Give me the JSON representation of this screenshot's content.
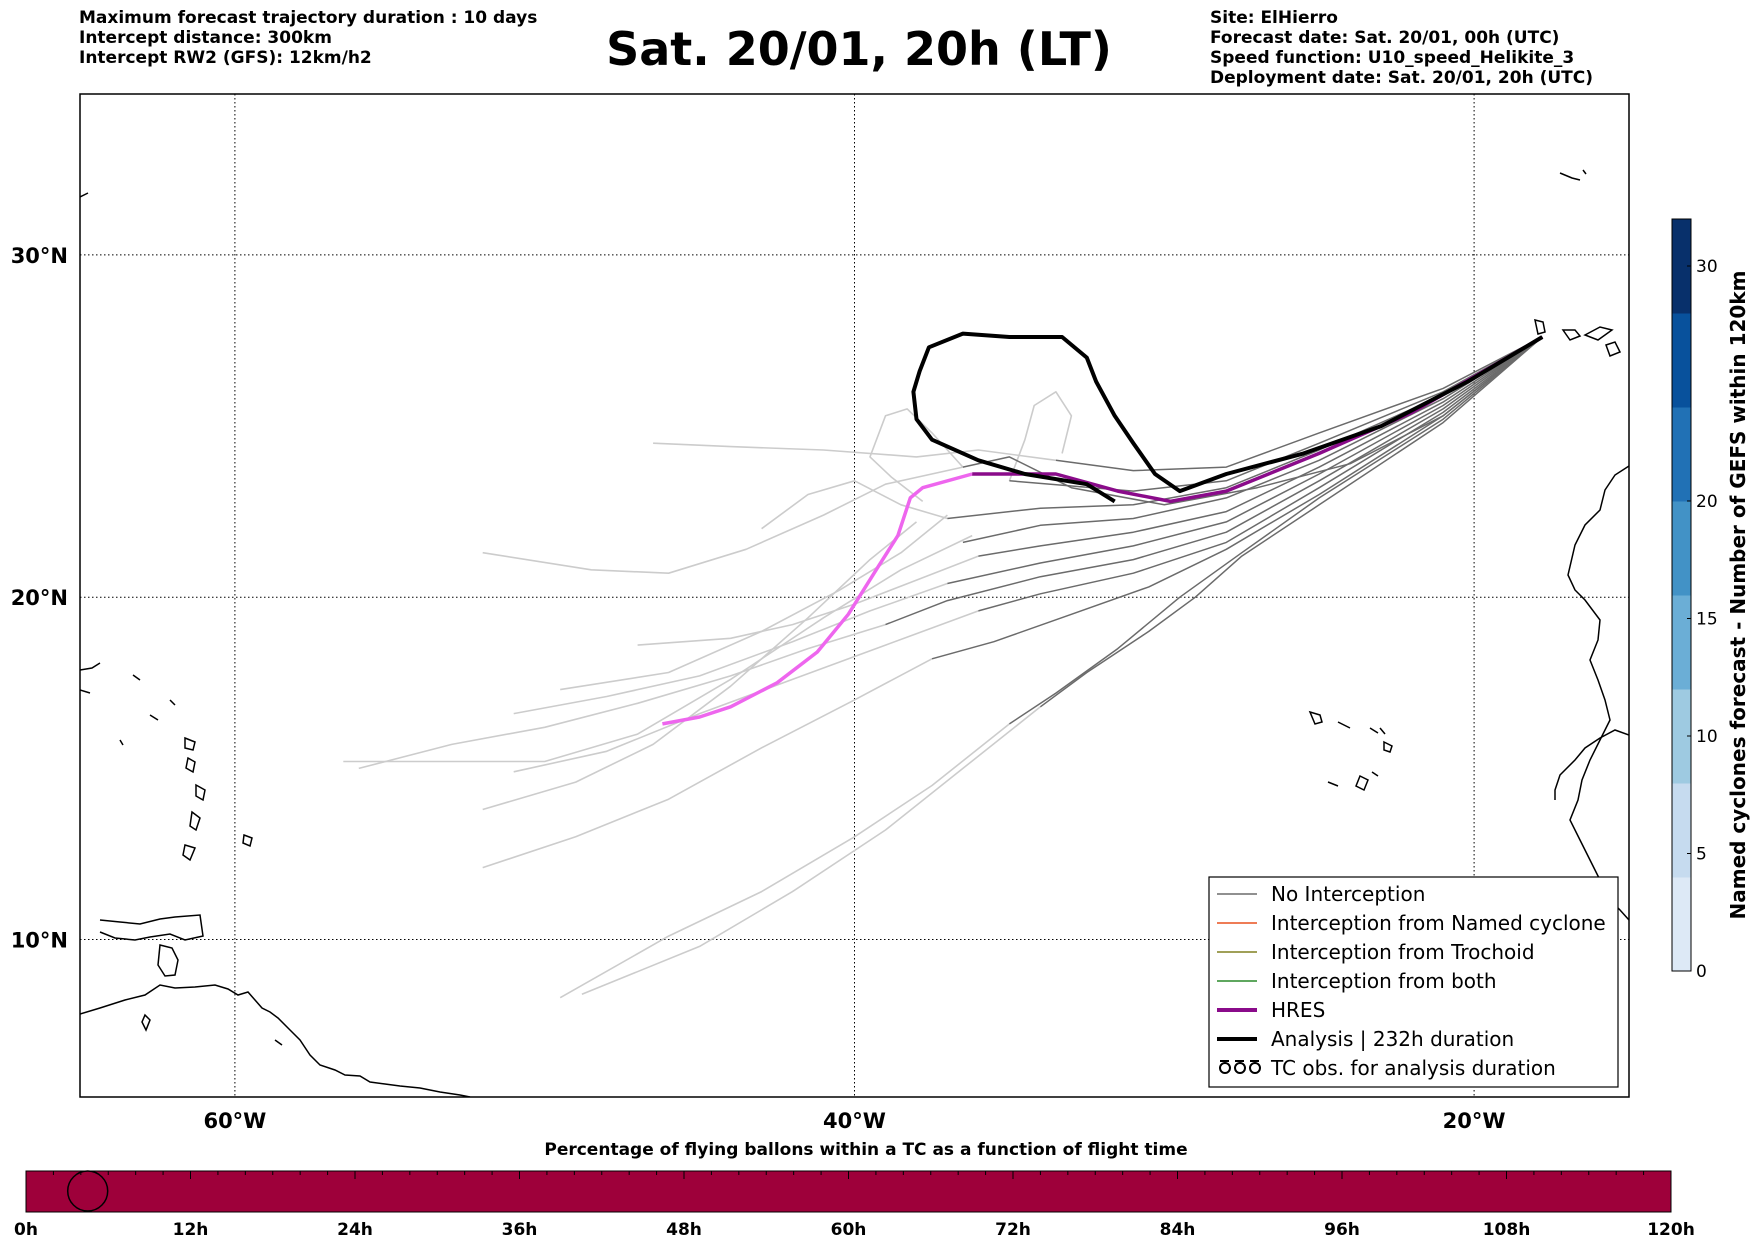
{
  "header": {
    "left_lines": [
      "Maximum forecast trajectory duration : 10 days",
      "Intercept distance: 300km",
      "Intercept RW2 (GFS):  12km/h2"
    ],
    "title": "Sat. 20/01, 20h (LT)",
    "right_lines": [
      "Site: ElHierro",
      "Forecast date: Sat. 20/01, 00h (UTC)",
      "Speed function: U10_speed_Helikite_3",
      "Deployment date: Sat. 20/01, 20h (UTC)"
    ]
  },
  "map": {
    "lon_range": [
      -65,
      -15
    ],
    "lat_range": [
      5.4,
      34.7
    ],
    "lat_labels": [
      {
        "lat": 30,
        "label": "30°N"
      },
      {
        "lat": 20,
        "label": "20°N"
      },
      {
        "lat": 10,
        "label": "10°N"
      }
    ],
    "lon_labels": [
      {
        "lon": -60,
        "label": "60°W"
      },
      {
        "lon": -40,
        "label": "40°W"
      },
      {
        "lon": -20,
        "label": "20°W"
      }
    ],
    "colors": {
      "ensemble_intercepted": "#6b6b6b",
      "ensemble_not_intercepted": "#cccccc",
      "hres": "#8a0b8a",
      "hres_extension": "#ee66ee",
      "analysis": "#000000"
    },
    "hres_track": [
      [
        -17.8,
        27.6
      ],
      [
        -19.5,
        26.7
      ],
      [
        -22,
        25.4
      ],
      [
        -25,
        24.2
      ],
      [
        -28,
        23.1
      ],
      [
        -29.8,
        22.8
      ],
      [
        -31.5,
        23.1
      ],
      [
        -33.5,
        23.6
      ],
      [
        -34.8,
        23.6
      ],
      [
        -36.2,
        23.6
      ]
    ],
    "hres_extension_track": [
      [
        -36.2,
        23.6
      ],
      [
        -37.8,
        23.2
      ],
      [
        -38.2,
        22.9
      ],
      [
        -38.6,
        21.8
      ],
      [
        -39.3,
        20.8
      ],
      [
        -40.2,
        19.5
      ],
      [
        -41.2,
        18.4
      ],
      [
        -42.5,
        17.5
      ],
      [
        -44,
        16.8
      ],
      [
        -45,
        16.5
      ],
      [
        -46.2,
        16.3
      ]
    ],
    "analysis_track": [
      [
        -17.8,
        27.6
      ],
      [
        -20.2,
        26.3
      ],
      [
        -23,
        25
      ],
      [
        -25.5,
        24.2
      ],
      [
        -28,
        23.6
      ],
      [
        -29.5,
        23.1
      ],
      [
        -30.3,
        23.6
      ],
      [
        -31,
        24.5
      ],
      [
        -31.6,
        25.3
      ],
      [
        -32.2,
        26.3
      ],
      [
        -32.5,
        27
      ],
      [
        -33.3,
        27.6
      ],
      [
        -35,
        27.6
      ],
      [
        -36.5,
        27.7
      ],
      [
        -37.6,
        27.3
      ],
      [
        -37.9,
        26.6
      ],
      [
        -38.1,
        26
      ],
      [
        -38,
        25.2
      ],
      [
        -37.5,
        24.6
      ],
      [
        -36,
        24
      ],
      [
        -34.5,
        23.6
      ],
      [
        -32.5,
        23.3
      ],
      [
        -31.6,
        22.8
      ]
    ],
    "ensemble_intercepted": [
      [
        [
          -17.8,
          27.6
        ],
        [
          -21,
          26.1
        ],
        [
          -25,
          24.8
        ],
        [
          -28,
          23.8
        ],
        [
          -31,
          23.7
        ],
        [
          -33.5,
          24
        ]
      ],
      [
        [
          -17.8,
          27.6
        ],
        [
          -21,
          26
        ],
        [
          -25,
          24.5
        ],
        [
          -28,
          23.4
        ],
        [
          -31,
          23.1
        ],
        [
          -35,
          23.4
        ]
      ],
      [
        [
          -17.8,
          27.6
        ],
        [
          -21,
          25.9
        ],
        [
          -25,
          24.3
        ],
        [
          -28,
          23.2
        ],
        [
          -31,
          22.7
        ],
        [
          -34,
          22.6
        ],
        [
          -37,
          22.3
        ]
      ],
      [
        [
          -17.8,
          27.6
        ],
        [
          -21,
          25.8
        ],
        [
          -25,
          24
        ],
        [
          -28,
          22.9
        ],
        [
          -31,
          22.3
        ],
        [
          -34,
          22.1
        ],
        [
          -36.5,
          21.6
        ]
      ],
      [
        [
          -17.8,
          27.6
        ],
        [
          -21,
          25.7
        ],
        [
          -25,
          23.8
        ],
        [
          -28,
          22.5
        ],
        [
          -31,
          21.9
        ],
        [
          -34,
          21.5
        ],
        [
          -36,
          21.2
        ]
      ],
      [
        [
          -17.8,
          27.6
        ],
        [
          -21,
          25.6
        ],
        [
          -25,
          23.6
        ],
        [
          -28,
          22.2
        ],
        [
          -31,
          21.5
        ],
        [
          -34,
          21
        ],
        [
          -37,
          20.4
        ]
      ],
      [
        [
          -17.8,
          27.6
        ],
        [
          -21,
          25.5
        ],
        [
          -25,
          23.4
        ],
        [
          -28,
          21.9
        ],
        [
          -31,
          21.1
        ],
        [
          -34,
          20.6
        ],
        [
          -37,
          19.9
        ],
        [
          -39,
          19.2
        ]
      ],
      [
        [
          -17.8,
          27.6
        ],
        [
          -21,
          25.4
        ],
        [
          -25,
          23.2
        ],
        [
          -28,
          21.6
        ],
        [
          -31,
          20.7
        ],
        [
          -34,
          20.1
        ],
        [
          -36,
          19.6
        ]
      ],
      [
        [
          -17.8,
          27.6
        ],
        [
          -21,
          25.3
        ],
        [
          -25,
          23
        ],
        [
          -28,
          21.4
        ],
        [
          -30.5,
          20.3
        ],
        [
          -33,
          19.5
        ],
        [
          -35.5,
          18.7
        ],
        [
          -37.5,
          18.2
        ]
      ],
      [
        [
          -17.8,
          27.6
        ],
        [
          -21,
          25.2
        ],
        [
          -25,
          22.9
        ],
        [
          -27.5,
          21.3
        ],
        [
          -29.5,
          20
        ],
        [
          -31.5,
          18.5
        ],
        [
          -33.5,
          17.2
        ],
        [
          -35,
          16.3
        ]
      ],
      [
        [
          -17.8,
          27.6
        ],
        [
          -21,
          25.1
        ],
        [
          -25,
          22.7
        ],
        [
          -27.5,
          21.2
        ],
        [
          -29,
          20
        ],
        [
          -30.5,
          19
        ],
        [
          -32.5,
          17.8
        ],
        [
          -34,
          16.8
        ]
      ],
      [
        [
          -17.8,
          27.6
        ],
        [
          -21,
          25.3
        ],
        [
          -24,
          23.9
        ],
        [
          -27,
          23.2
        ],
        [
          -30,
          22.7
        ],
        [
          -33,
          23.2
        ],
        [
          -35,
          24.1
        ],
        [
          -36.5,
          23.8
        ]
      ]
    ],
    "ensemble_not_intercepted": [
      [
        [
          -33.5,
          24
        ],
        [
          -36,
          24.3
        ],
        [
          -38,
          24.1
        ],
        [
          -41,
          24.3
        ],
        [
          -44,
          24.4
        ],
        [
          -46.5,
          24.5
        ]
      ],
      [
        [
          -36.5,
          23.8
        ],
        [
          -39,
          23.3
        ],
        [
          -41,
          22.4
        ],
        [
          -43.5,
          21.4
        ],
        [
          -46,
          20.7
        ],
        [
          -48.5,
          20.8
        ],
        [
          -52,
          21.3
        ]
      ],
      [
        [
          -36,
          21.2
        ],
        [
          -38,
          20.5
        ],
        [
          -40,
          19.8
        ],
        [
          -42,
          19.2
        ],
        [
          -44,
          18.8
        ],
        [
          -47,
          18.6
        ]
      ],
      [
        [
          -37,
          20.4
        ],
        [
          -39.5,
          19.6
        ],
        [
          -42,
          18.7
        ],
        [
          -45,
          17.7
        ],
        [
          -48,
          17.1
        ],
        [
          -51,
          16.6
        ]
      ],
      [
        [
          -39,
          19.2
        ],
        [
          -41.5,
          18.5
        ],
        [
          -44,
          17.7
        ],
        [
          -47,
          16.9
        ],
        [
          -50,
          16.2
        ],
        [
          -53,
          15.7
        ],
        [
          -56,
          15
        ]
      ],
      [
        [
          -36,
          19.6
        ],
        [
          -39,
          18.6
        ],
        [
          -42,
          17.6
        ],
        [
          -45,
          16.6
        ],
        [
          -48,
          15.5
        ],
        [
          -51,
          14.9
        ]
      ],
      [
        [
          -37.5,
          18.2
        ],
        [
          -40,
          17
        ],
        [
          -43,
          15.6
        ],
        [
          -46,
          14.1
        ],
        [
          -49,
          13
        ],
        [
          -52,
          12.1
        ]
      ],
      [
        [
          -35,
          16.3
        ],
        [
          -37.5,
          14.5
        ],
        [
          -40,
          13
        ],
        [
          -43,
          11.4
        ],
        [
          -46,
          10.1
        ],
        [
          -49.5,
          8.3
        ]
      ],
      [
        [
          -34,
          16.8
        ],
        [
          -36.5,
          15
        ],
        [
          -39,
          13.2
        ],
        [
          -42,
          11.4
        ],
        [
          -45,
          9.8
        ],
        [
          -48.8,
          8.4
        ]
      ],
      [
        [
          -36.2,
          21.8
        ],
        [
          -38.5,
          20.8
        ],
        [
          -41,
          19.4
        ],
        [
          -44,
          17.6
        ],
        [
          -47,
          16
        ],
        [
          -50,
          15.2
        ],
        [
          -56.5,
          15.2
        ]
      ],
      [
        [
          -38,
          22.2
        ],
        [
          -39.5,
          21.1
        ],
        [
          -41.5,
          19.4
        ],
        [
          -44,
          17.4
        ],
        [
          -46.5,
          15.7
        ],
        [
          -49,
          14.6
        ],
        [
          -52,
          13.8
        ]
      ],
      [
        [
          -37,
          22.4
        ],
        [
          -38.5,
          21.3
        ],
        [
          -40.5,
          20.2
        ],
        [
          -43,
          19
        ],
        [
          -46,
          17.8
        ],
        [
          -49.5,
          17.3
        ]
      ],
      [
        [
          -36.5,
          23.8
        ],
        [
          -37.5,
          24.8
        ],
        [
          -38.3,
          25.5
        ],
        [
          -39,
          25.3
        ],
        [
          -39.5,
          24.1
        ],
        [
          -38.8,
          23.5
        ],
        [
          -37.8,
          22.8
        ]
      ],
      [
        [
          -35,
          23.4
        ],
        [
          -34.5,
          24.6
        ],
        [
          -34.2,
          25.6
        ],
        [
          -33.5,
          26
        ],
        [
          -33,
          25.3
        ],
        [
          -33.3,
          24.2
        ]
      ],
      [
        [
          -37,
          22.3
        ],
        [
          -38.5,
          22.7
        ],
        [
          -40,
          23.4
        ],
        [
          -41.5,
          23
        ],
        [
          -43,
          22
        ]
      ]
    ],
    "legend": {
      "items": [
        {
          "label": "No Interception",
          "color": "#6b6b6b",
          "style": "line-thin"
        },
        {
          "label": "Interception from Named cyclone",
          "color": "#e8511f",
          "style": "line-thin"
        },
        {
          "label": "Interception from Trochoid",
          "color": "#808020",
          "style": "line-thin"
        },
        {
          "label": "Interception from both",
          "color": "#2a8a2a",
          "style": "line-thin"
        },
        {
          "label": "HRES",
          "color": "#8a0b8a",
          "style": "line-thick"
        },
        {
          "label": "Analysis | 232h duration",
          "color": "#000000",
          "style": "line-thick"
        },
        {
          "label": "TC obs. for analysis duration",
          "color": "#000000",
          "style": "tc-symbols"
        }
      ]
    }
  },
  "colorbar": {
    "label": "Named cyclones forecast - Number of GEFS within 120km",
    "min": 0,
    "max": 32,
    "ticks": [
      0,
      5,
      10,
      15,
      20,
      30
    ],
    "colors": [
      "#dde9f6",
      "#c6dbef",
      "#9ecae1",
      "#6baed6",
      "#4292c6",
      "#2171b5",
      "#08519c",
      "#08306b"
    ]
  },
  "bottom_bar": {
    "title": "Percentage of flying ballons within a TC as a function of flight time",
    "fill_color": "#9e003a",
    "ticks": [
      "0h",
      "12h",
      "24h",
      "36h",
      "48h",
      "60h",
      "72h",
      "84h",
      "96h",
      "108h",
      "120h"
    ],
    "max_hours": 120,
    "marker_hour": 4.5
  }
}
